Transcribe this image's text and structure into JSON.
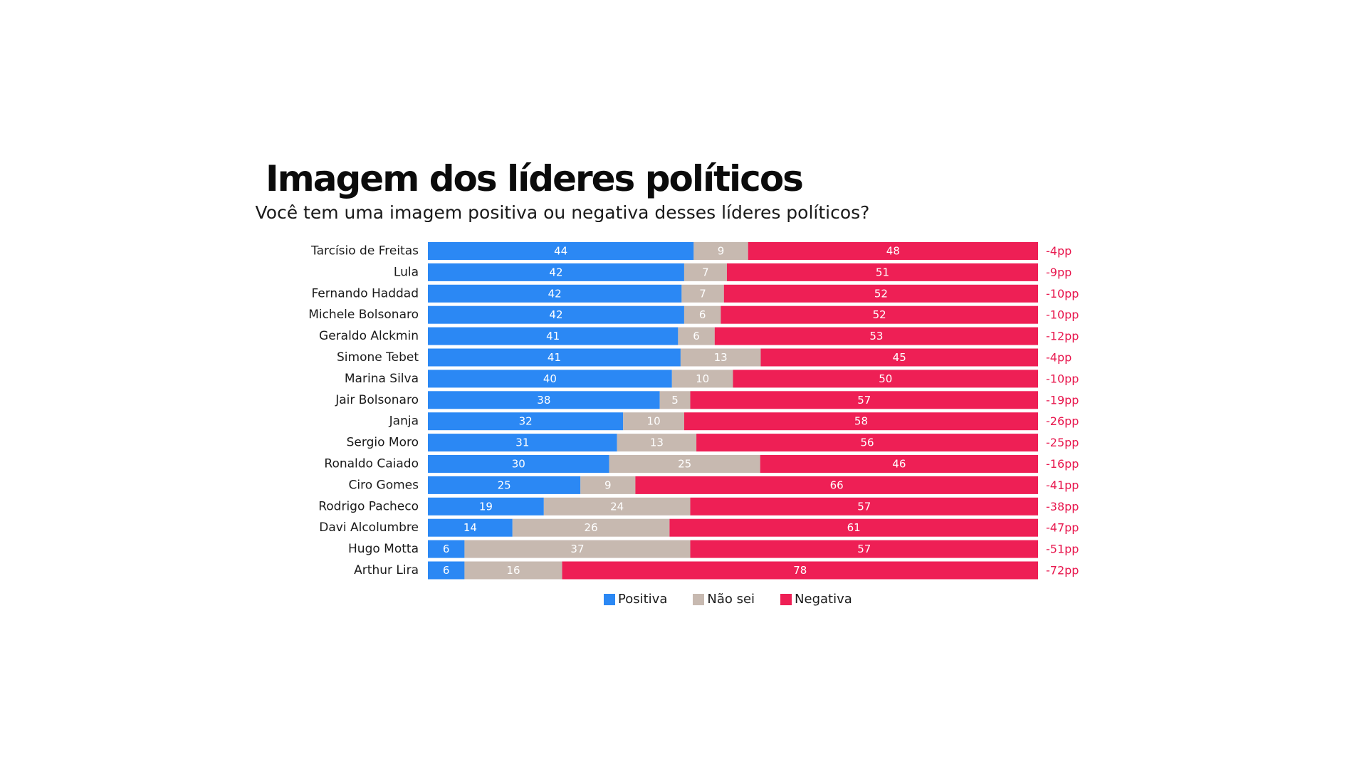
{
  "colors": {
    "positiva": "#2b88f4",
    "nao_sei": "#c7b9b0",
    "negativa": "#ee1f55",
    "diff_text": "#e8194f"
  },
  "chart_data": {
    "type": "bar",
    "stacked": true,
    "orientation": "horizontal",
    "title": "Imagem dos líderes políticos",
    "subtitle": "Você tem uma imagem positiva ou negativa desses líderes políticos?",
    "categories": [
      "Tarcísio de Freitas",
      "Lula",
      "Fernando Haddad",
      "Michele Bolsonaro",
      "Geraldo Alckmin",
      "Simone Tebet",
      "Marina Silva",
      "Jair Bolsonaro",
      "Janja",
      "Sergio Moro",
      "Ronaldo Caiado",
      "Ciro Gomes",
      "Rodrigo Pacheco",
      "Davi Alcolumbre",
      "Hugo Motta",
      "Arthur Lira"
    ],
    "series": [
      {
        "name": "Positiva",
        "values": [
          44,
          42,
          42,
          42,
          41,
          41,
          40,
          38,
          32,
          31,
          30,
          25,
          19,
          14,
          6,
          6
        ]
      },
      {
        "name": "Não sei",
        "values": [
          9,
          7,
          7,
          6,
          6,
          13,
          10,
          5,
          10,
          13,
          25,
          9,
          24,
          26,
          37,
          16
        ]
      },
      {
        "name": "Negativa",
        "values": [
          48,
          51,
          52,
          52,
          53,
          45,
          50,
          57,
          58,
          56,
          46,
          66,
          57,
          61,
          57,
          78
        ]
      }
    ],
    "differences": [
      "-4pp",
      "-9pp",
      "-10pp",
      "-10pp",
      "-12pp",
      "-4pp",
      "-10pp",
      "-19pp",
      "-26pp",
      "-25pp",
      "-16pp",
      "-41pp",
      "-38pp",
      "-47pp",
      "-51pp",
      "-72pp"
    ],
    "legend": [
      "Positiva",
      "Não sei",
      "Negativa"
    ],
    "legend_position": "bottom-center",
    "xlim": [
      0,
      100
    ],
    "grid": false
  }
}
